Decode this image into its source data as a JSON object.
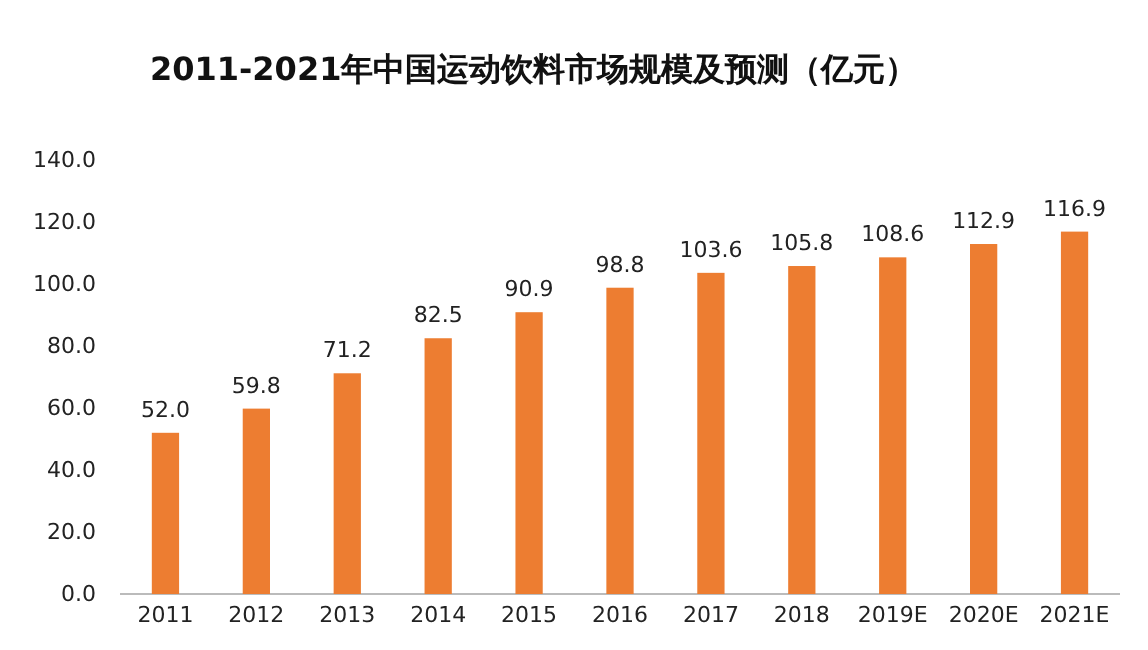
{
  "chart_data": {
    "type": "bar",
    "title": "2011-2021年中国运动饮料市场规模及预测（亿元）",
    "categories": [
      "2011",
      "2012",
      "2013",
      "2014",
      "2015",
      "2016",
      "2017",
      "2018",
      "2019E",
      "2020E",
      "2021E"
    ],
    "values": [
      52.0,
      59.8,
      71.2,
      82.5,
      90.9,
      98.8,
      103.6,
      105.8,
      108.6,
      112.9,
      116.9
    ],
    "value_labels": [
      "52.0",
      "59.8",
      "71.2",
      "82.5",
      "90.9",
      "98.8",
      "103.6",
      "105.8",
      "108.6",
      "112.9",
      "116.9"
    ],
    "color": "#ed7d31",
    "ylim": [
      0,
      140
    ],
    "yticks": [
      {
        "value": 0,
        "label": "0.0"
      },
      {
        "value": 20,
        "label": "20.0"
      },
      {
        "value": 40,
        "label": "40.0"
      },
      {
        "value": 60,
        "label": "60.0"
      },
      {
        "value": 80,
        "label": "80.0"
      },
      {
        "value": 100,
        "label": "100.0"
      },
      {
        "value": 120,
        "label": "120.0"
      },
      {
        "value": 140,
        "label": "140.0"
      }
    ],
    "grid": false
  }
}
